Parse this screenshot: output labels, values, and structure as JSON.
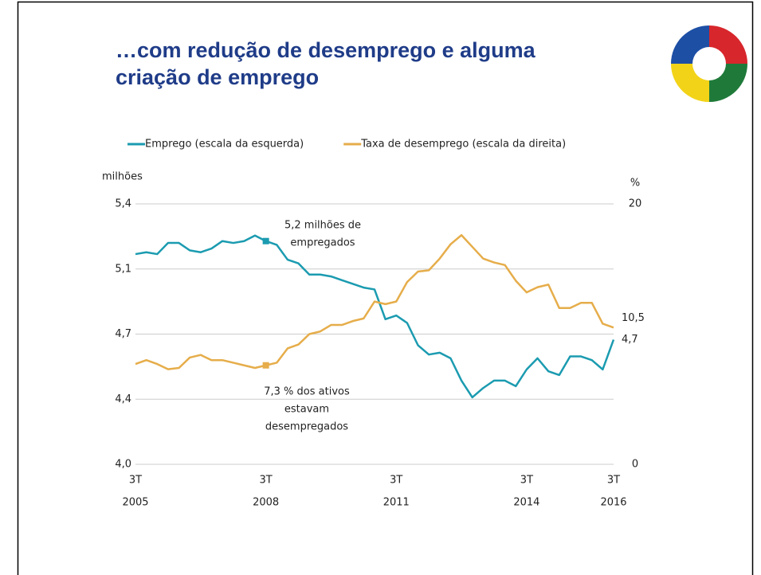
{
  "header": {
    "title": [
      "…com redução de desemprego e alguma",
      "criação de emprego"
    ]
  },
  "chart_data": {
    "type": "line",
    "y_label": "milhões",
    "y2_label": "%",
    "categories": [
      [
        "3T",
        "2005"
      ],
      null,
      null,
      null,
      null,
      null,
      null,
      null,
      null,
      null,
      null,
      null,
      [
        "3T",
        "2008"
      ],
      null,
      null,
      null,
      null,
      null,
      null,
      null,
      null,
      null,
      null,
      null,
      [
        "3T",
        "2011"
      ],
      null,
      null,
      null,
      null,
      null,
      null,
      null,
      null,
      null,
      null,
      null,
      [
        "3T",
        "2014"
      ],
      null,
      null,
      null,
      null,
      null,
      null,
      null,
      [
        "3T",
        "2016"
      ]
    ],
    "series": [
      {
        "name": "Emprego (escala da esquerda)",
        "color": "#1b9bb0",
        "values": [
          5.13,
          5.14,
          5.13,
          5.19,
          5.19,
          5.15,
          5.14,
          5.16,
          5.2,
          5.19,
          5.2,
          5.23,
          5.2,
          5.18,
          5.1,
          5.08,
          5.02,
          5.02,
          5.01,
          4.99,
          4.97,
          4.95,
          4.94,
          4.78,
          4.8,
          4.76,
          4.64,
          4.59,
          4.6,
          4.57,
          4.45,
          4.36,
          4.41,
          4.45,
          4.45,
          4.42,
          4.51,
          4.57,
          4.5,
          4.48,
          4.58,
          4.58,
          4.56,
          4.51,
          4.67
        ],
        "value_labels": [
          null,
          null,
          null,
          null,
          null,
          null,
          null,
          null,
          null,
          null,
          null,
          null,
          null,
          null,
          null,
          null,
          null,
          null,
          null,
          null,
          null,
          null,
          null,
          null,
          null,
          null,
          null,
          null,
          null,
          null,
          null,
          null,
          null,
          null,
          null,
          null,
          null,
          null,
          null,
          null,
          null,
          null,
          null,
          null,
          "4,7"
        ]
      },
      {
        "name": "Taxa de desemprego (escala da direita)",
        "color": "#e6ad4a",
        "axis": "y2",
        "values": [
          7.7,
          8.0,
          7.7,
          7.3,
          7.4,
          8.2,
          8.4,
          8.0,
          8.0,
          7.8,
          7.6,
          7.4,
          7.6,
          7.8,
          8.9,
          9.2,
          10.0,
          10.2,
          10.7,
          10.7,
          11.0,
          11.2,
          12.5,
          12.3,
          12.5,
          14.0,
          14.8,
          14.9,
          15.8,
          16.9,
          17.6,
          16.7,
          15.8,
          15.5,
          15.3,
          14.1,
          13.2,
          13.6,
          13.8,
          12.0,
          12.0,
          12.4,
          12.4,
          10.8,
          10.5
        ],
        "value_labels": [
          null,
          null,
          null,
          null,
          null,
          null,
          null,
          null,
          null,
          null,
          null,
          null,
          null,
          null,
          null,
          null,
          null,
          null,
          null,
          null,
          null,
          null,
          null,
          null,
          null,
          null,
          null,
          null,
          null,
          null,
          null,
          null,
          null,
          null,
          null,
          null,
          null,
          null,
          null,
          null,
          null,
          null,
          null,
          null,
          "10,5"
        ]
      }
    ],
    "annotations": [
      {
        "text": [
          "5,2 milhões de",
          "empregados"
        ]
      },
      {
        "text": [
          "7,3 % dos ativos",
          "estavam",
          "desempregados"
        ]
      }
    ],
    "ylim": [
      4.0,
      5.4
    ],
    "yticks": [
      {
        "value": 4.0,
        "label": "4,0"
      },
      {
        "value": 4.35,
        "label": "4,4"
      },
      {
        "value": 4.7,
        "label": "4,7"
      },
      {
        "value": 5.05,
        "label": "5,1"
      },
      {
        "value": 5.4,
        "label": "5,4"
      }
    ],
    "y2lim": [
      0,
      20
    ],
    "y2ticks": [
      0,
      20
    ],
    "grid": true
  }
}
